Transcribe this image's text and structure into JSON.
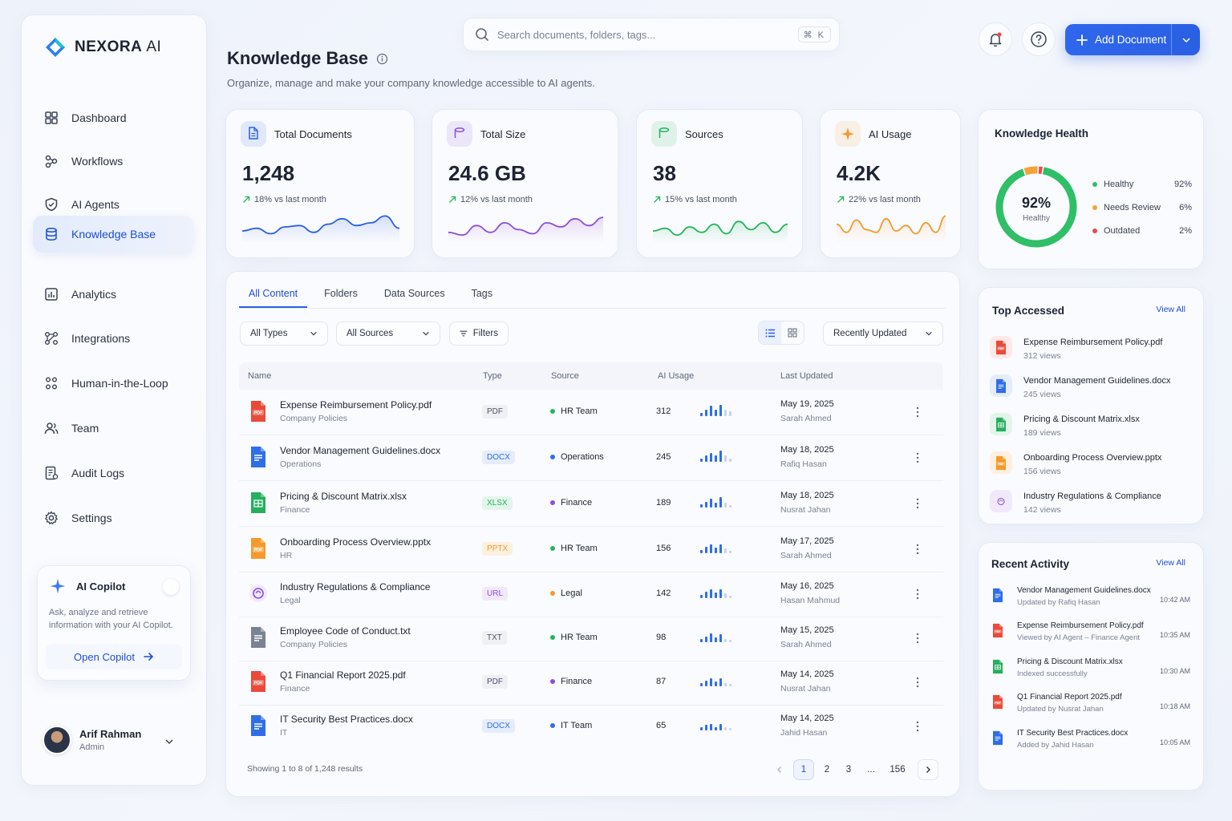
{
  "brand": {
    "name": "NEXORA",
    "suffix": "AI",
    "accent": "#2a5fe3"
  },
  "sidebar": {
    "items": [
      {
        "label": "Dashboard",
        "icon": "grid-icon"
      },
      {
        "label": "Workflows",
        "icon": "workflow-icon"
      },
      {
        "label": "AI Agents",
        "icon": "shield-check-icon"
      },
      {
        "label": "Knowledge Base",
        "icon": "database-icon",
        "active": true
      },
      {
        "label": "Analytics",
        "icon": "bar-chart-icon"
      },
      {
        "label": "Integrations",
        "icon": "integrations-icon"
      },
      {
        "label": "Human-in-the-Loop",
        "icon": "people-network-icon"
      },
      {
        "label": "Team",
        "icon": "team-icon"
      },
      {
        "label": "Audit Logs",
        "icon": "audit-log-icon"
      },
      {
        "label": "Settings",
        "icon": "gear-icon"
      }
    ],
    "copilot": {
      "title": "AI Copilot",
      "description": "Ask, analyze and retrieve information with your AI Copilot.",
      "button": "Open Copilot"
    },
    "user": {
      "name": "Arif Rahman",
      "role": "Admin"
    }
  },
  "header": {
    "search_placeholder": "Search documents, folders, tags...",
    "shortcut": "⌘ K",
    "add_button": "Add Document"
  },
  "page": {
    "title": "Knowledge Base",
    "subtitle": "Organize, manage and make your company knowledge accessible to AI agents."
  },
  "stats": [
    {
      "label": "Total Documents",
      "value": "1,248",
      "delta": "18% vs last month",
      "color": "#2a5fe3"
    },
    {
      "label": "Total Size",
      "value": "24.6 GB",
      "delta": "12% vs last month",
      "color": "#8b4fd8"
    },
    {
      "label": "Sources",
      "value": "38",
      "delta": "15% vs last month",
      "color": "#22b45a"
    },
    {
      "label": "AI Usage",
      "value": "4.2K",
      "delta": "22% vs last month",
      "color": "#f29a2e"
    }
  ],
  "health": {
    "title": "Knowledge Health",
    "center_value": "92%",
    "center_label": "Healthy",
    "segments": [
      {
        "label": "Healthy",
        "pct": "92%",
        "value": 92,
        "color": "#2fbf67"
      },
      {
        "label": "Needs Review",
        "pct": "6%",
        "value": 6,
        "color": "#f5a23a"
      },
      {
        "label": "Outdated",
        "pct": "2%",
        "value": 2,
        "color": "#ef4a4a"
      }
    ]
  },
  "content": {
    "tabs": [
      "All Content",
      "Folders",
      "Data Sources",
      "Tags"
    ],
    "filters": {
      "types": "All Types",
      "sources": "All Sources",
      "filters": "Filters",
      "sort": "Recently Updated"
    },
    "columns": [
      "Name",
      "Type",
      "Source",
      "AI Usage",
      "Last Updated"
    ],
    "rows": [
      {
        "name": "Expense Reimbursement Policy.pdf",
        "category": "Company Policies",
        "type": "PDF",
        "source": "HR Team",
        "usage": "312",
        "date": "May 19, 2025",
        "by": "Sarah Ahmed"
      },
      {
        "name": "Vendor Management Guidelines.docx",
        "category": "Operations",
        "type": "DOCX",
        "source": "Operations",
        "usage": "245",
        "date": "May 18, 2025",
        "by": "Rafiq Hasan"
      },
      {
        "name": "Pricing & Discount Matrix.xlsx",
        "category": "Finance",
        "type": "XLSX",
        "source": "Finance",
        "usage": "189",
        "date": "May 18, 2025",
        "by": "Nusrat Jahan"
      },
      {
        "name": "Onboarding Process Overview.pptx",
        "category": "HR",
        "type": "PPTX",
        "source": "HR Team",
        "usage": "156",
        "date": "May 17, 2025",
        "by": "Sarah Ahmed"
      },
      {
        "name": "Industry Regulations & Compliance",
        "category": "Legal",
        "type": "URL",
        "source": "Legal",
        "usage": "142",
        "date": "May 16, 2025",
        "by": "Hasan Mahmud"
      },
      {
        "name": "Employee Code of Conduct.txt",
        "category": "Company Policies",
        "type": "TXT",
        "source": "HR Team",
        "usage": "98",
        "date": "May 15, 2025",
        "by": "Sarah Ahmed"
      },
      {
        "name": "Q1 Financial Report 2025.pdf",
        "category": "Finance",
        "type": "PDF",
        "source": "Finance",
        "usage": "87",
        "date": "May 14, 2025",
        "by": "Nusrat Jahan"
      },
      {
        "name": "IT Security Best Practices.docx",
        "category": "IT",
        "type": "DOCX",
        "source": "IT Team",
        "usage": "65",
        "date": "May 14, 2025",
        "by": "Jahid Hasan"
      }
    ],
    "showing": "Showing 1 to 8 of 1,248 results",
    "pages": [
      "1",
      "2",
      "3",
      "...",
      "156"
    ]
  },
  "top_accessed": {
    "title": "Top Accessed",
    "view_all": "View All",
    "items": [
      {
        "name": "Expense Reimbursement Policy.pdf",
        "views": "312 views",
        "kind": "pdf"
      },
      {
        "name": "Vendor Management Guidelines.docx",
        "views": "245 views",
        "kind": "docx"
      },
      {
        "name": "Pricing & Discount Matrix.xlsx",
        "views": "189 views",
        "kind": "xlsx"
      },
      {
        "name": "Onboarding Process Overview.pptx",
        "views": "156 views",
        "kind": "pptx"
      },
      {
        "name": "Industry Regulations & Compliance",
        "views": "142 views",
        "kind": "url"
      }
    ]
  },
  "recent_activity": {
    "title": "Recent Activity",
    "view_all": "View All",
    "items": [
      {
        "name": "Vendor Management Guidelines.docx",
        "desc": "Updated by Rafiq Hasan",
        "time": "10:42 AM",
        "kind": "docx"
      },
      {
        "name": "Expense Reimbursement Policy.pdf",
        "desc": "Viewed by AI Agent – Finance Agent",
        "time": "10:35 AM",
        "kind": "pdf"
      },
      {
        "name": "Pricing & Discount Matrix.xlsx",
        "desc": "Indexed successfully",
        "time": "10:30 AM",
        "kind": "xlsx"
      },
      {
        "name": "Q1 Financial Report 2025.pdf",
        "desc": "Updated by Nusrat Jahan",
        "time": "10:18 AM",
        "kind": "pdf"
      },
      {
        "name": "IT Security Best Practices.docx",
        "desc": "Added by Jahid Hasan",
        "time": "10:05 AM",
        "kind": "docx"
      }
    ]
  }
}
